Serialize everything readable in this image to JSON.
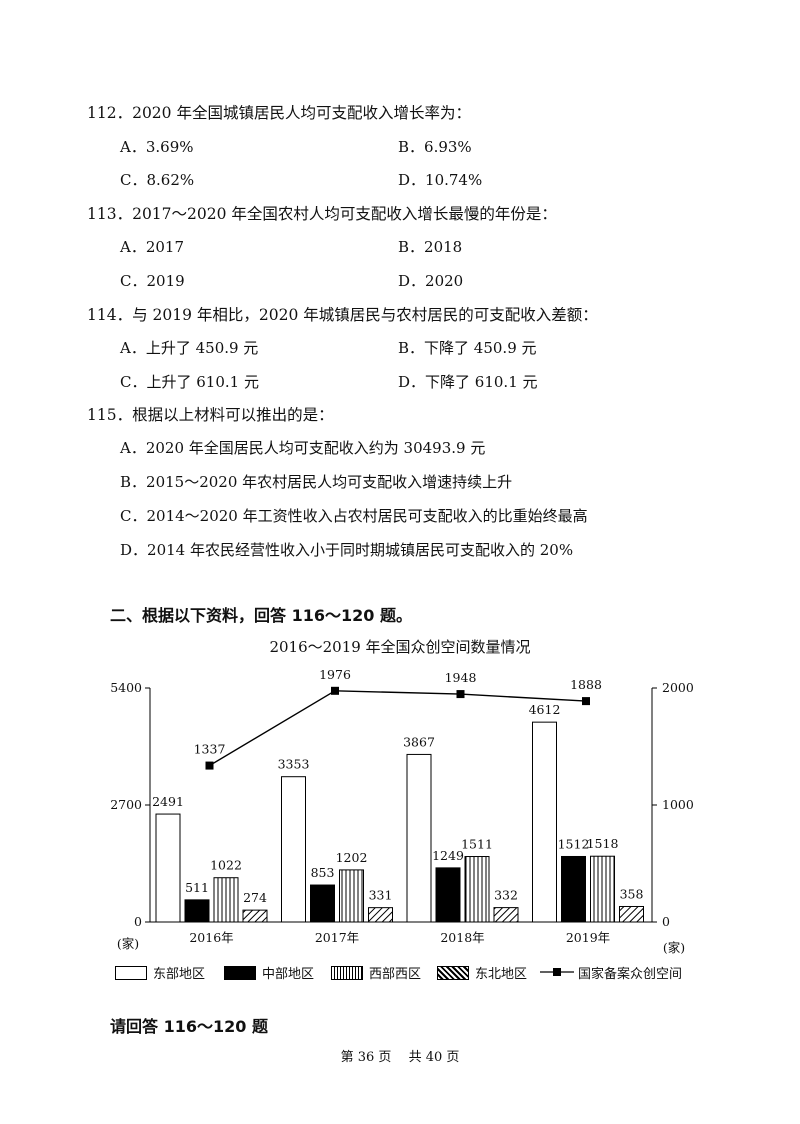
{
  "questions": [
    {
      "num_stem": "112．2020 年全国城镇居民人均可支配收入增长率为：",
      "options": [
        "A．3.69%",
        "B．6.93%",
        "C．8.62%",
        "D．10.74%"
      ]
    },
    {
      "num_stem": "113．2017～2020 年全国农村人均可支配收入增长最慢的年份是：",
      "options": [
        "A．2017",
        "B．2018",
        "C．2019",
        "D．2020"
      ]
    },
    {
      "num_stem": "114．与 2019 年相比，2020 年城镇居民与农村居民的可支配收入差额：",
      "options": [
        "A．上升了 450.9 元",
        "B．下降了 450.9 元",
        "C．上升了 610.1 元",
        "D．下降了 610.1 元"
      ]
    },
    {
      "num_stem": "115．根据以上材料可以推出的是：",
      "options": [
        "A．2020 年全国居民人均可支配收入约为 30493.9 元",
        "B．2015～2020 年农村居民人均可支配收入增速持续上升",
        "C．2014～2020 年工资性收入占农村居民可支配收入的比重始终最高",
        "D．2014 年农民经营性收入小于同时期城镇居民可支配收入的 20%"
      ]
    }
  ],
  "section_heading": "二、根据以下资料，回答 116～120 题。",
  "chart_data": {
    "type": "bar",
    "title": "2016～2019 年全国众创空间数量情况",
    "categories": [
      "2016年",
      "2017年",
      "2018年",
      "2019年"
    ],
    "series": [
      {
        "name": "东部地区",
        "values": [
          2491,
          3353,
          3867,
          4612
        ],
        "style": "white"
      },
      {
        "name": "中部地区",
        "values": [
          511,
          853,
          1249,
          1512
        ],
        "style": "black"
      },
      {
        "name": "西部西区",
        "values": [
          1022,
          1202,
          1511,
          1518
        ],
        "style": "vertical-stripes"
      },
      {
        "name": "东北地区",
        "values": [
          274,
          331,
          332,
          358
        ],
        "style": "diagonal-hatch"
      }
    ],
    "line_series": {
      "name": "国家备案众创空间",
      "values": [
        1337,
        1976,
        1948,
        1888
      ],
      "axis": "right"
    },
    "ylim_left": [
      0,
      5400
    ],
    "ylim_right": [
      0,
      2000
    ],
    "left_ticks": [
      "0",
      "2700",
      "5400"
    ],
    "right_ticks": [
      "0",
      "1000",
      "2000"
    ],
    "left_unit": "(家)",
    "right_unit": "(家)",
    "grid": false,
    "legend_position": "bottom"
  },
  "answer_prompt": "请回答 116～120 题",
  "footer": "第 36 页　 共 40 页"
}
